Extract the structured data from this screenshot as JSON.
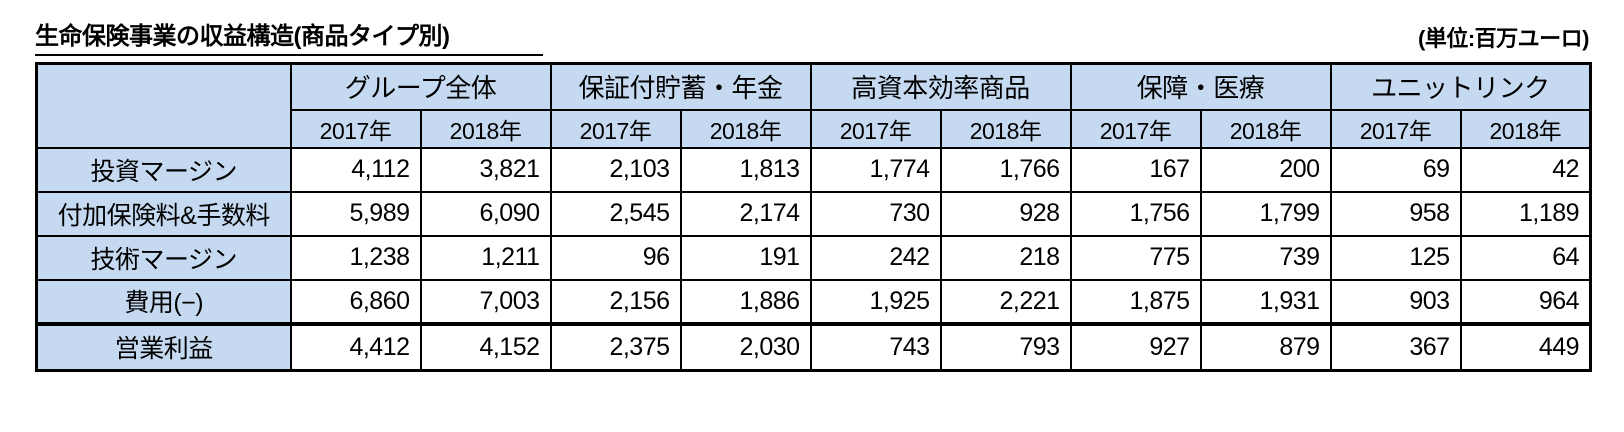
{
  "page": {
    "title": "生命保険事業の収益構造(商品タイプ別)",
    "unit_note": "(単位:百万ユーロ)"
  },
  "colors": {
    "header_bg": "#c5d9f1",
    "border": "#000000",
    "table_bg": "#ffffff",
    "text": "#000000"
  },
  "chart_data": {
    "type": "table",
    "title": "生命保険事業の収益構造(商品タイプ別)",
    "unit": "百万ユーロ",
    "column_groups": [
      "グループ全体",
      "保証付貯蓄・年金",
      "高資本効率商品",
      "保障・医療",
      "ユニットリンク"
    ],
    "year_columns": [
      "2017年",
      "2018年"
    ],
    "row_labels": [
      "投資マージン",
      "付加保険料&手数料",
      "技術マージン",
      "費用(−)",
      "営業利益"
    ],
    "rows": [
      {
        "label": "投資マージン",
        "values": [
          "4,112",
          "3,821",
          "2,103",
          "1,813",
          "1,774",
          "1,766",
          "167",
          "200",
          "69",
          "42"
        ]
      },
      {
        "label": "付加保険料&手数料",
        "values": [
          "5,989",
          "6,090",
          "2,545",
          "2,174",
          "730",
          "928",
          "1,756",
          "1,799",
          "958",
          "1,189"
        ]
      },
      {
        "label": "技術マージン",
        "values": [
          "1,238",
          "1,211",
          "96",
          "191",
          "242",
          "218",
          "775",
          "739",
          "125",
          "64"
        ]
      },
      {
        "label": "費用(−)",
        "values": [
          "6,860",
          "7,003",
          "2,156",
          "1,886",
          "1,925",
          "2,221",
          "1,875",
          "1,931",
          "903",
          "964"
        ]
      },
      {
        "label": "営業利益",
        "values": [
          "4,412",
          "4,152",
          "2,375",
          "2,030",
          "743",
          "793",
          "927",
          "879",
          "367",
          "449"
        ]
      }
    ]
  }
}
